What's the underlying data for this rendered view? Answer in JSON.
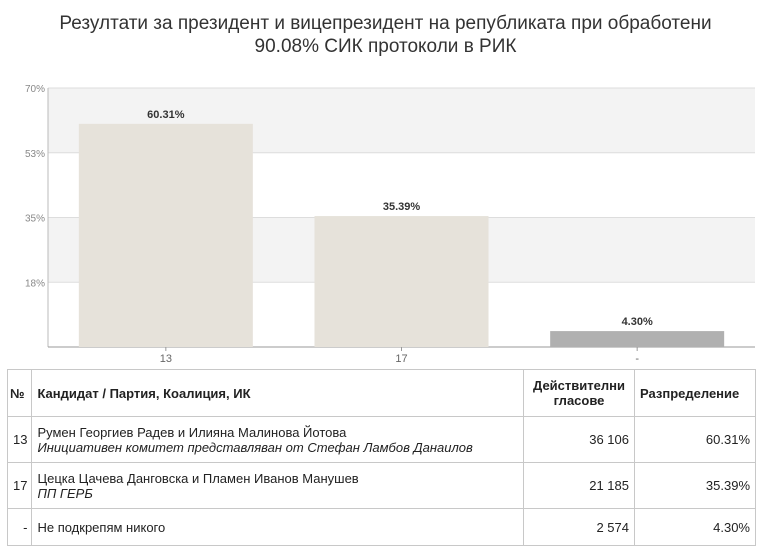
{
  "title_line1": "Резултати за президент и вицепрезидент на републиката при обработени",
  "title_line2": "90.08% СИК протоколи в РИК",
  "colors": {
    "bar_primary": "#e6e2da",
    "bar_other": "#b0b0b0",
    "plot_band": "#f3f3f3",
    "grid": "#dddddd"
  },
  "chart_data": {
    "type": "bar",
    "categories": [
      "13",
      "17",
      "-"
    ],
    "values": [
      60.31,
      35.39,
      4.3
    ],
    "value_labels": [
      "60.31%",
      "35.39%",
      "4.30%"
    ],
    "yticks": [
      "18%",
      "35%",
      "53%",
      "70%"
    ],
    "ytick_values": [
      17.5,
      35,
      52.5,
      70
    ],
    "ylim": [
      0,
      70
    ],
    "grid": true,
    "title": "",
    "xlabel": "",
    "ylabel": ""
  },
  "table": {
    "headers": {
      "num": "№",
      "candidate": "Кандидат / Партия, Коалиция, ИК",
      "votes_line1": "Действителни",
      "votes_line2": "гласове",
      "share": "Разпределение"
    },
    "rows": [
      {
        "num": "13",
        "candidate": "Румен Георгиев Радев и Илияна Малинова Йотова",
        "party": "Инициативен комитет представляван от Стефан Ламбов Данаилов",
        "votes": "36 106",
        "share": "60.31%"
      },
      {
        "num": "17",
        "candidate": "Цецка Цачева Данговска и Пламен Иванов Манушев",
        "party": "ПП ГЕРБ",
        "votes": "21 185",
        "share": "35.39%"
      },
      {
        "num": "-",
        "candidate": "Не подкрепям никого",
        "party": "",
        "votes": "2 574",
        "share": "4.30%"
      }
    ]
  }
}
